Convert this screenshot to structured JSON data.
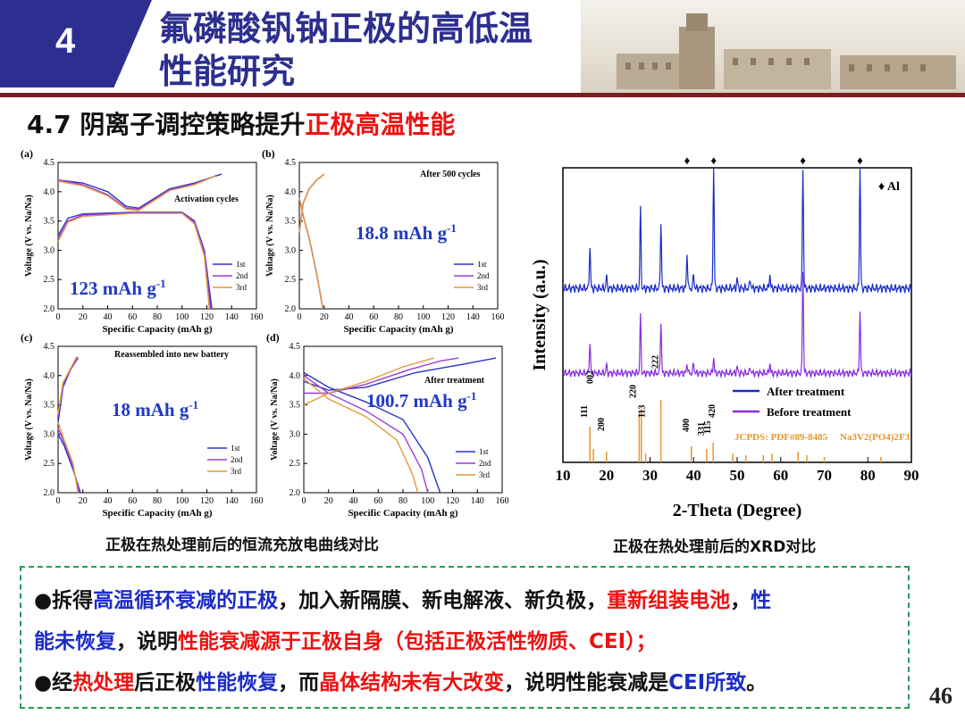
{
  "header": {
    "section_number": "4",
    "title_line1": "氟磷酸钒钠正极的高低温",
    "title_line2": "性能研究"
  },
  "subtitle": {
    "prefix": "4.7 阴离子调控策略提升",
    "highlight": "正极高温性能"
  },
  "left_figure": {
    "caption": "正极在热处理前后的恒流充放电曲线对比",
    "legend_labels": [
      "1st",
      "2nd",
      "3rd"
    ],
    "legend_colors": [
      "#2b33c9",
      "#9b3fd6",
      "#e39a3c"
    ],
    "xlabel": "Specific Capacity (mAh g",
    "ylabel": "Voltage (V vs. Na",
    "panels": [
      {
        "tag": "(a)",
        "note": "Activation cycles",
        "capacity_label": "123 mAh g",
        "xlim": [
          0,
          160
        ],
        "ylim": [
          2.0,
          4.5
        ]
      },
      {
        "tag": "(b)",
        "note": "After 500 cycles",
        "capacity_label": "18.8 mAh g",
        "xlim": [
          0,
          160
        ],
        "ylim": [
          2.0,
          4.5
        ]
      },
      {
        "tag": "(c)",
        "note": "Reassembled into new battery",
        "capacity_label": "18 mAh g",
        "xlim": [
          0,
          160
        ],
        "ylim": [
          2.0,
          4.5
        ]
      },
      {
        "tag": "(d)",
        "note": "After treatment",
        "capacity_label": "100.7 mAh g",
        "xlim": [
          0,
          160
        ],
        "ylim": [
          2.0,
          4.5
        ]
      }
    ]
  },
  "chart_data": [
    {
      "type": "line",
      "title": "(a) Activation cycles",
      "xlabel": "Specific Capacity (mAh g-1)",
      "ylabel": "Voltage (V vs. Na+/Na)",
      "xlim": [
        0,
        160
      ],
      "ylim": [
        2.0,
        4.5
      ],
      "series": [
        {
          "name": "1st",
          "charge": [
            [
              0,
              4.2
            ],
            [
              20,
              4.15
            ],
            [
              40,
              4.0
            ],
            [
              55,
              3.75
            ],
            [
              65,
              3.72
            ],
            [
              90,
              4.05
            ],
            [
              110,
              4.15
            ],
            [
              132,
              4.3
            ]
          ],
          "discharge": [
            [
              0,
              3.25
            ],
            [
              8,
              3.55
            ],
            [
              20,
              3.62
            ],
            [
              60,
              3.65
            ],
            [
              100,
              3.65
            ],
            [
              110,
              3.5
            ],
            [
              118,
              3.0
            ],
            [
              124,
              2.0
            ]
          ]
        },
        {
          "name": "2nd",
          "charge": [
            [
              0,
              4.2
            ],
            [
              20,
              4.12
            ],
            [
              40,
              3.95
            ],
            [
              55,
              3.72
            ],
            [
              65,
              3.7
            ],
            [
              90,
              4.03
            ],
            [
              110,
              4.13
            ],
            [
              128,
              4.28
            ]
          ],
          "discharge": [
            [
              0,
              3.2
            ],
            [
              8,
              3.5
            ],
            [
              20,
              3.6
            ],
            [
              60,
              3.64
            ],
            [
              100,
              3.64
            ],
            [
              110,
              3.48
            ],
            [
              118,
              2.95
            ],
            [
              123,
              2.0
            ]
          ]
        },
        {
          "name": "3rd",
          "charge": [
            [
              0,
              4.18
            ],
            [
              20,
              4.1
            ],
            [
              40,
              3.93
            ],
            [
              55,
              3.7
            ],
            [
              65,
              3.68
            ],
            [
              90,
              4.02
            ],
            [
              110,
              4.12
            ],
            [
              127,
              4.27
            ]
          ],
          "discharge": [
            [
              0,
              3.15
            ],
            [
              8,
              3.48
            ],
            [
              20,
              3.58
            ],
            [
              60,
              3.63
            ],
            [
              100,
              3.63
            ],
            [
              110,
              3.45
            ],
            [
              118,
              2.9
            ],
            [
              122,
              2.0
            ]
          ]
        }
      ]
    },
    {
      "type": "line",
      "title": "(b) After 500 cycles",
      "xlabel": "Specific Capacity (mAh g-1)",
      "ylabel": "Voltage (V vs. Na+/Na)",
      "xlim": [
        0,
        160
      ],
      "ylim": [
        2.0,
        4.5
      ],
      "series": [
        {
          "name": "1st",
          "charge": [
            [
              0,
              3.3
            ],
            [
              3,
              3.8
            ],
            [
              8,
              4.05
            ],
            [
              14,
              4.2
            ],
            [
              20,
              4.3
            ]
          ],
          "discharge": [
            [
              0,
              3.9
            ],
            [
              3,
              3.6
            ],
            [
              8,
              3.2
            ],
            [
              14,
              2.6
            ],
            [
              19,
              2.0
            ]
          ]
        },
        {
          "name": "2nd",
          "charge": [
            [
              0,
              3.3
            ],
            [
              3,
              3.8
            ],
            [
              8,
              4.05
            ],
            [
              14,
              4.2
            ],
            [
              20,
              4.3
            ]
          ],
          "discharge": [
            [
              0,
              3.9
            ],
            [
              3,
              3.6
            ],
            [
              8,
              3.2
            ],
            [
              14,
              2.6
            ],
            [
              19,
              2.0
            ]
          ]
        },
        {
          "name": "3rd",
          "charge": [
            [
              0,
              3.3
            ],
            [
              3,
              3.8
            ],
            [
              8,
              4.05
            ],
            [
              14,
              4.2
            ],
            [
              20,
              4.3
            ]
          ],
          "discharge": [
            [
              0,
              3.9
            ],
            [
              3,
              3.6
            ],
            [
              8,
              3.2
            ],
            [
              14,
              2.6
            ],
            [
              19,
              2.0
            ]
          ]
        }
      ]
    },
    {
      "type": "line",
      "title": "(c) Reassembled into new battery",
      "xlabel": "Specific Capacity (mAh g-1)",
      "ylabel": "Voltage (V vs. Na+/Na)",
      "xlim": [
        0,
        160
      ],
      "ylim": [
        2.0,
        4.5
      ],
      "series": [
        {
          "name": "1st",
          "charge": [
            [
              0,
              3.2
            ],
            [
              4,
              3.8
            ],
            [
              10,
              4.1
            ],
            [
              16,
              4.3
            ]
          ],
          "discharge": [
            [
              0,
              3.0
            ],
            [
              5,
              2.8
            ],
            [
              12,
              2.4
            ],
            [
              18,
              2.0
            ]
          ]
        },
        {
          "name": "2nd",
          "charge": [
            [
              0,
              3.3
            ],
            [
              4,
              3.85
            ],
            [
              10,
              4.1
            ],
            [
              16,
              4.32
            ]
          ],
          "discharge": [
            [
              0,
              3.1
            ],
            [
              5,
              2.85
            ],
            [
              12,
              2.45
            ],
            [
              17,
              2.0
            ]
          ]
        },
        {
          "name": "3rd",
          "charge": [
            [
              0,
              3.35
            ],
            [
              4,
              3.88
            ],
            [
              10,
              4.12
            ],
            [
              15,
              4.32
            ]
          ],
          "discharge": [
            [
              0,
              3.2
            ],
            [
              5,
              2.9
            ],
            [
              12,
              2.5
            ],
            [
              16,
              2.0
            ]
          ]
        }
      ]
    },
    {
      "type": "line",
      "title": "(d) After treatment",
      "xlabel": "Specific Capacity (mAh g-1)",
      "ylabel": "Voltage (V vs. Na+/Na)",
      "xlim": [
        0,
        160
      ],
      "ylim": [
        2.0,
        4.5
      ],
      "series": [
        {
          "name": "1st",
          "charge": [
            [
              0,
              3.9
            ],
            [
              20,
              3.75
            ],
            [
              50,
              3.8
            ],
            [
              90,
              4.05
            ],
            [
              130,
              4.2
            ],
            [
              155,
              4.3
            ]
          ],
          "discharge": [
            [
              0,
              4.05
            ],
            [
              20,
              3.8
            ],
            [
              50,
              3.55
            ],
            [
              80,
              3.25
            ],
            [
              100,
              2.6
            ],
            [
              110,
              2.0
            ]
          ]
        },
        {
          "name": "2nd",
          "charge": [
            [
              0,
              3.7
            ],
            [
              20,
              3.7
            ],
            [
              50,
              3.85
            ],
            [
              85,
              4.1
            ],
            [
              110,
              4.25
            ],
            [
              125,
              4.3
            ]
          ],
          "discharge": [
            [
              0,
              4.0
            ],
            [
              20,
              3.7
            ],
            [
              50,
              3.4
            ],
            [
              80,
              3.0
            ],
            [
              95,
              2.4
            ],
            [
              100,
              2.0
            ]
          ]
        },
        {
          "name": "3rd",
          "charge": [
            [
              0,
              3.5
            ],
            [
              20,
              3.7
            ],
            [
              50,
              3.9
            ],
            [
              80,
              4.15
            ],
            [
              105,
              4.3
            ]
          ],
          "discharge": [
            [
              0,
              3.95
            ],
            [
              20,
              3.6
            ],
            [
              50,
              3.3
            ],
            [
              75,
              2.9
            ],
            [
              88,
              2.3
            ],
            [
              92,
              2.0
            ]
          ]
        }
      ]
    },
    {
      "type": "line",
      "title": "XRD",
      "xlabel": "2-Theta (Degree)",
      "ylabel": "Intensity (a.u.)",
      "xlim": [
        10,
        90
      ],
      "series": [
        {
          "name": "After treatment",
          "color": "#1c2cc8",
          "peaks": [
            [
              16.2,
              0.35
            ],
            [
              20,
              0.1
            ],
            [
              27.8,
              0.65
            ],
            [
              32.5,
              0.55
            ],
            [
              38.5,
              0.3
            ],
            [
              40,
              0.12
            ],
            [
              44.6,
              1.0
            ],
            [
              50,
              0.08
            ],
            [
              53,
              0.08
            ],
            [
              57.5,
              0.12
            ],
            [
              65.1,
              1.0
            ],
            [
              78.2,
              1.0
            ]
          ]
        },
        {
          "name": "Before treatment",
          "color": "#8a2be2",
          "peaks": [
            [
              16.2,
              0.3
            ],
            [
              20,
              0.08
            ],
            [
              27.8,
              0.55
            ],
            [
              32.5,
              0.5
            ],
            [
              38.5,
              0.1
            ],
            [
              40,
              0.1
            ],
            [
              44.6,
              0.15
            ],
            [
              50,
              0.06
            ],
            [
              53,
              0.06
            ],
            [
              57.5,
              0.1
            ],
            [
              65.1,
              1.0
            ],
            [
              78.2,
              0.6
            ]
          ]
        }
      ],
      "reference": {
        "name": "JCPDS: PDF#89-8485",
        "positions": [
          16.2,
          17,
          20,
          27.5,
          28,
          29,
          32.5,
          39.5,
          43,
          44.5,
          49,
          52,
          56,
          58,
          64,
          66,
          70,
          83
        ],
        "labels": [
          "111",
          "002",
          "200",
          "220",
          "113",
          "222",
          "400",
          "331",
          "115",
          "420"
        ]
      },
      "al_marker_positions": [
        38.5,
        44.6,
        65.1,
        78.2
      ]
    }
  ],
  "xrd": {
    "caption": "正极在热处理前后的XRD对比",
    "xlabel": "2-Theta (Degree)",
    "ylabel": "Intensity (a.u.)",
    "legend_after": "After treatment",
    "legend_before": "Before treatment",
    "al_label": "Al",
    "ref_label": "JCPDS: PDF#89-8485",
    "formula_label": "Na3V2(PO4)2F3",
    "xticks": [
      "10",
      "20",
      "30",
      "40",
      "50",
      "60",
      "70",
      "80",
      "90"
    ]
  },
  "notes": {
    "l1_a": "●拆得",
    "l1_b": "高温循环衰减的正极",
    "l1_c": "，加入新隔膜、新电解液、新负极，",
    "l1_d": "重新组装电池",
    "l1_e": "，",
    "l1_f": "性",
    "l2_a": "能未恢复",
    "l2_b": "，说明",
    "l2_c": "性能衰减源于正极自身（包括正极活性物质、CEI）；",
    "l3_a": "●经",
    "l3_b": "热处理",
    "l3_c": "后正极",
    "l3_d": "性能恢复",
    "l3_e": "，而",
    "l3_f": "晶体结构未有大改变",
    "l3_g": "，说明性能衰减是",
    "l3_h": "CEI所致",
    "l3_i": "。"
  },
  "page_number": "46",
  "colors": {
    "brand": "#2c2f8f",
    "accent_red": "#e11111",
    "accent_blue": "#1c2cc8",
    "dashed_border": "#2a9a5a"
  }
}
